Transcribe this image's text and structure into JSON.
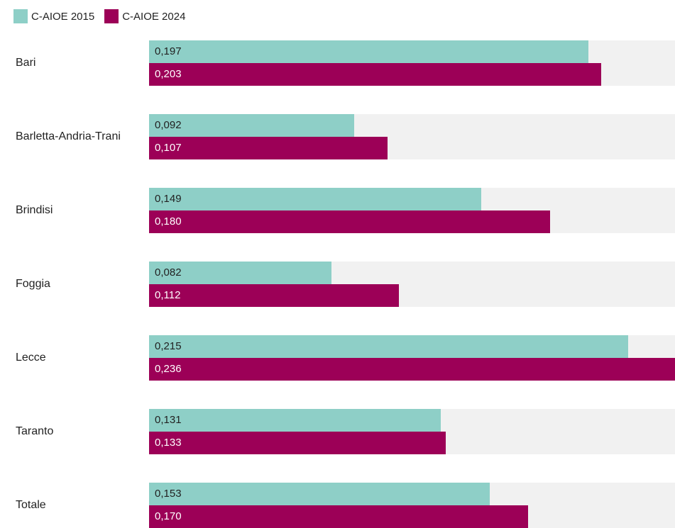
{
  "chart_data": {
    "type": "bar",
    "orientation": "horizontal",
    "categories": [
      "Bari",
      "Barletta-Andria-Trani",
      "Brindisi",
      "Foggia",
      "Lecce",
      "Taranto",
      "Totale"
    ],
    "series": [
      {
        "name": "C-AIOE 2015",
        "color": "#8ecfc7",
        "values": [
          0.197,
          0.092,
          0.149,
          0.082,
          0.215,
          0.131,
          0.153
        ],
        "labels": [
          "0,197",
          "0,092",
          "0,149",
          "0,082",
          "0,215",
          "0,131",
          "0,153"
        ]
      },
      {
        "name": "C-AIOE 2024",
        "color": "#9c0057",
        "values": [
          0.203,
          0.107,
          0.18,
          0.112,
          0.236,
          0.133,
          0.17
        ],
        "labels": [
          "0,203",
          "0,107",
          "0,180",
          "0,112",
          "0,236",
          "0,133",
          "0,170"
        ]
      }
    ],
    "xlim": [
      0,
      0.236
    ],
    "grid": false,
    "legend_position": "top-left",
    "track_color": "#f1f1f1"
  }
}
